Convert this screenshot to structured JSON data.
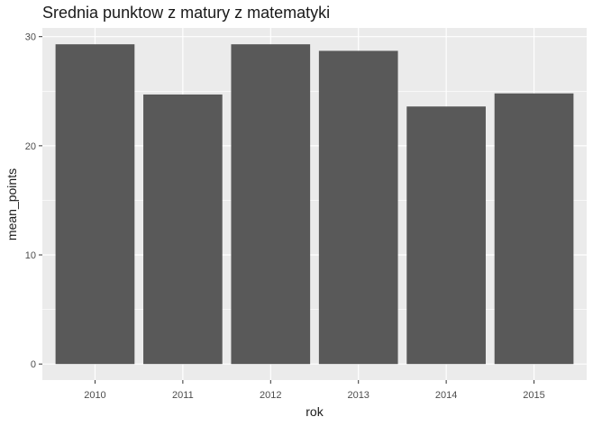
{
  "chart_data": {
    "type": "bar",
    "title": "Srednia punktow z matury z matematyki",
    "xlabel": "rok",
    "ylabel": "mean_points",
    "categories": [
      "2010",
      "2011",
      "2012",
      "2013",
      "2014",
      "2015"
    ],
    "values": [
      29.3,
      24.7,
      29.3,
      28.7,
      23.6,
      24.8
    ],
    "ylim": [
      -1.47,
      30.8
    ],
    "yticks": [
      0,
      10,
      20,
      30
    ],
    "grid": true,
    "legend": "none",
    "colors": {
      "bar": "#595959",
      "panel": "#ebebeb",
      "grid": "#ffffff"
    }
  }
}
